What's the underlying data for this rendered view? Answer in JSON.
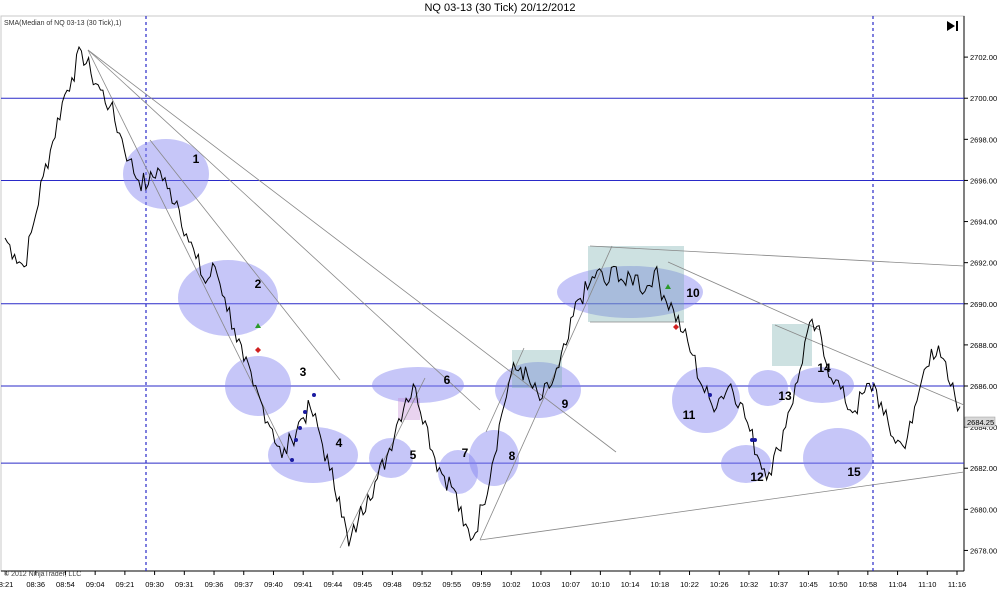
{
  "title": "NQ 03-13 (30 Tick)  20/12/2012",
  "indicator_label": "SMA(Median of NQ 03-13 (30 Tick),1)",
  "copyright": "© 2012 NinjaTrader, LLC",
  "current_price_label": "2684.25",
  "scroll_end_icon": "skip-to-end-icon",
  "colors": {
    "price": "#000000",
    "level_line": "#2a2ac8",
    "session_line": "#2a2ac8",
    "ellipse": "#8080f0",
    "box": "#6fa8a8",
    "trendline": "#888888",
    "buy_marker": "#2a9a2a",
    "sell_marker": "#d02020",
    "dot_marker": "#1a1aa0"
  },
  "chart_data": {
    "type": "line",
    "title": "NQ 03-13 (30 Tick)  20/12/2012",
    "series": [
      {
        "name": "SMA(Median of NQ 03-13 (30 Tick),1)",
        "x": [
          0,
          2,
          4,
          6,
          8,
          10,
          12,
          14,
          16,
          18,
          20,
          22,
          24,
          26,
          28,
          30,
          32,
          34,
          36,
          38,
          40,
          42,
          44,
          46,
          48,
          50,
          52,
          54,
          56,
          58,
          60,
          62,
          64,
          66,
          68,
          70,
          72,
          74,
          76,
          78,
          80,
          82,
          84,
          86,
          88,
          90,
          92,
          94,
          96,
          98,
          100,
          102,
          104,
          106,
          108,
          110,
          112,
          114,
          116,
          118,
          120,
          122,
          124,
          126,
          128,
          130,
          132,
          134,
          136,
          138,
          140,
          142,
          144,
          146,
          148,
          150,
          152,
          154,
          156,
          158,
          160,
          162,
          164,
          166,
          168,
          170,
          172,
          174,
          176,
          178,
          180,
          182,
          184,
          186,
          188,
          190,
          192,
          194,
          196,
          198,
          200
        ],
        "y": [
          2693.2,
          2692.4,
          2691.8,
          2693.9,
          2696.2,
          2697.9,
          2699.8,
          2701.0,
          2702.3,
          2701.2,
          2700.4,
          2699.6,
          2698.3,
          2697.0,
          2696.0,
          2695.8,
          2696.6,
          2695.6,
          2695.0,
          2693.4,
          2692.2,
          2691.0,
          2691.8,
          2690.3,
          2688.8,
          2687.2,
          2686.0,
          2685.0,
          2683.9,
          2682.5,
          2683.4,
          2684.4,
          2684.9,
          2683.6,
          2681.9,
          2680.6,
          2678.2,
          2679.5,
          2680.7,
          2681.5,
          2682.6,
          2684.1,
          2685.4,
          2685.9,
          2684.3,
          2682.5,
          2681.6,
          2681.0,
          2679.2,
          2678.6,
          2680.2,
          2682.2,
          2684.6,
          2686.6,
          2686.9,
          2686.1,
          2685.3,
          2685.9,
          2686.9,
          2688.3,
          2690.2,
          2690.7,
          2691.6,
          2690.9,
          2691.8,
          2690.9,
          2691.4,
          2690.6,
          2691.6,
          2690.4,
          2689.7,
          2688.6,
          2687.5,
          2686.0,
          2685.1,
          2685.5,
          2686.1,
          2685.2,
          2683.8,
          2682.4,
          2681.8,
          2682.9,
          2684.7,
          2686.2,
          2688.6,
          2688.9,
          2687.1,
          2686.3,
          2685.2,
          2684.8,
          2685.7,
          2686.1,
          2684.6,
          2683.5,
          2683.1,
          2684.2,
          2686.3,
          2687.8,
          2687.4,
          2686.0,
          2685.0
        ]
      }
    ],
    "x_tick_labels": [
      "8:21",
      "08:36",
      "08:54",
      "09:04",
      "09:21",
      "09:30",
      "09:31",
      "09:36",
      "09:37",
      "09:40",
      "09:41",
      "09:44",
      "09:45",
      "09:48",
      "09:52",
      "09:55",
      "09:59",
      "10:02",
      "10:03",
      "10:07",
      "10:10",
      "10:14",
      "10:18",
      "10:22",
      "10:26",
      "10:32",
      "10:37",
      "10:45",
      "10:50",
      "10:58",
      "11:04",
      "11:10",
      "11:16"
    ],
    "y_ticks": [
      2678,
      2680,
      2682,
      2684,
      2686,
      2688,
      2690,
      2692,
      2694,
      2696,
      2698,
      2700,
      2702
    ],
    "y_tick_labels": [
      "2678.00",
      "2680.00",
      "2682.00",
      "2684.00",
      "2686.00",
      "2688.00",
      "2690.00",
      "2692.00",
      "2694.00",
      "2696.00",
      "2698.00",
      "2700.00",
      "2702.00"
    ],
    "ylim": [
      2677,
      2704
    ],
    "horizontal_levels": [
      2700,
      2696,
      2690,
      2686,
      2682.25
    ],
    "annotations": [
      "1",
      "2",
      "3",
      "4",
      "5",
      "6",
      "7",
      "8",
      "9",
      "10",
      "11",
      "12",
      "13",
      "14",
      "15"
    ],
    "grid": false,
    "legend": "none"
  }
}
